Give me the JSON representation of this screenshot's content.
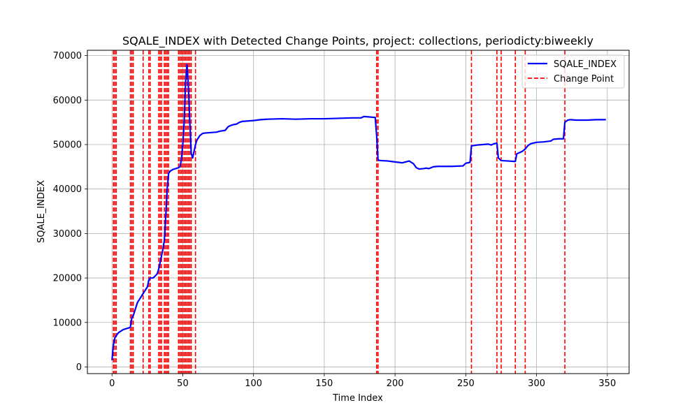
{
  "chart_data": {
    "type": "line",
    "title": "SQALE_INDEX with Detected Change Points, project: collections, periodicty:biweekly",
    "xlabel": "Time Index",
    "ylabel": "SQALE_INDEX",
    "xlim": [
      -17.4,
      365.4
    ],
    "ylim": [
      -1500,
      71200
    ],
    "xticks": [
      0,
      50,
      100,
      150,
      200,
      250,
      300,
      350
    ],
    "yticks": [
      0,
      10000,
      20000,
      30000,
      40000,
      50000,
      60000,
      70000
    ],
    "grid": true,
    "legend_position": "upper right",
    "series": [
      {
        "name": "SQALE_INDEX",
        "color": "#0000ff",
        "style": "solid",
        "points": [
          [
            0,
            1500
          ],
          [
            1,
            5000
          ],
          [
            2,
            6500
          ],
          [
            3,
            7000
          ],
          [
            4,
            7500
          ],
          [
            5,
            7800
          ],
          [
            6,
            8000
          ],
          [
            7,
            8200
          ],
          [
            8,
            8400
          ],
          [
            9,
            8500
          ],
          [
            10,
            8600
          ],
          [
            11,
            8700
          ],
          [
            12,
            8800
          ],
          [
            13,
            9000
          ],
          [
            14,
            11000
          ],
          [
            15,
            11500
          ],
          [
            16,
            12500
          ],
          [
            17,
            13500
          ],
          [
            18,
            14500
          ],
          [
            19,
            15000
          ],
          [
            20,
            15500
          ],
          [
            21,
            16000
          ],
          [
            22,
            16500
          ],
          [
            23,
            17000
          ],
          [
            24,
            17500
          ],
          [
            25,
            18000
          ],
          [
            26,
            19500
          ],
          [
            27,
            20000
          ],
          [
            28,
            20000
          ],
          [
            29,
            20000
          ],
          [
            30,
            20300
          ],
          [
            31,
            20600
          ],
          [
            32,
            21000
          ],
          [
            33,
            22000
          ],
          [
            34,
            23500
          ],
          [
            35,
            25000
          ],
          [
            36,
            26500
          ],
          [
            37,
            28500
          ],
          [
            38,
            34000
          ],
          [
            39,
            40000
          ],
          [
            40,
            43500
          ],
          [
            41,
            44000
          ],
          [
            42,
            44200
          ],
          [
            43,
            44400
          ],
          [
            44,
            44500
          ],
          [
            45,
            44600
          ],
          [
            46,
            44700
          ],
          [
            47,
            44800
          ],
          [
            48,
            45000
          ],
          [
            49,
            46500
          ],
          [
            50,
            50000
          ],
          [
            51,
            55000
          ],
          [
            52,
            64000
          ],
          [
            53,
            68000
          ],
          [
            54,
            63000
          ],
          [
            55,
            55000
          ],
          [
            56,
            48000
          ],
          [
            57,
            47000
          ],
          [
            58,
            48500
          ],
          [
            59,
            50000
          ],
          [
            60,
            51000
          ],
          [
            62,
            52000
          ],
          [
            64,
            52500
          ],
          [
            66,
            52600
          ],
          [
            70,
            52700
          ],
          [
            74,
            52800
          ],
          [
            76,
            53000
          ],
          [
            80,
            53200
          ],
          [
            82,
            54000
          ],
          [
            84,
            54300
          ],
          [
            86,
            54500
          ],
          [
            88,
            54600
          ],
          [
            90,
            55000
          ],
          [
            92,
            55200
          ],
          [
            96,
            55300
          ],
          [
            100,
            55400
          ],
          [
            105,
            55600
          ],
          [
            110,
            55700
          ],
          [
            120,
            55800
          ],
          [
            130,
            55700
          ],
          [
            140,
            55800
          ],
          [
            150,
            55800
          ],
          [
            160,
            55900
          ],
          [
            170,
            56000
          ],
          [
            176,
            56000
          ],
          [
            178,
            56300
          ],
          [
            182,
            56200
          ],
          [
            186,
            56100
          ],
          [
            187,
            52000
          ],
          [
            188,
            46500
          ],
          [
            190,
            46400
          ],
          [
            195,
            46300
          ],
          [
            200,
            46100
          ],
          [
            205,
            45900
          ],
          [
            210,
            46300
          ],
          [
            213,
            45700
          ],
          [
            215,
            44800
          ],
          [
            217,
            44500
          ],
          [
            220,
            44600
          ],
          [
            222,
            44700
          ],
          [
            224,
            44600
          ],
          [
            227,
            45000
          ],
          [
            230,
            45100
          ],
          [
            240,
            45100
          ],
          [
            248,
            45200
          ],
          [
            250,
            45800
          ],
          [
            253,
            46000
          ],
          [
            254,
            49700
          ],
          [
            258,
            49900
          ],
          [
            262,
            50000
          ],
          [
            266,
            50100
          ],
          [
            268,
            49900
          ],
          [
            270,
            50200
          ],
          [
            272,
            50300
          ],
          [
            273,
            47000
          ],
          [
            275,
            46400
          ],
          [
            280,
            46300
          ],
          [
            285,
            46200
          ],
          [
            286,
            47900
          ],
          [
            290,
            48500
          ],
          [
            292,
            49000
          ],
          [
            294,
            49800
          ],
          [
            296,
            50200
          ],
          [
            300,
            50500
          ],
          [
            305,
            50600
          ],
          [
            310,
            50800
          ],
          [
            312,
            51200
          ],
          [
            316,
            51300
          ],
          [
            319,
            51300
          ],
          [
            320,
            55000
          ],
          [
            322,
            55500
          ],
          [
            324,
            55600
          ],
          [
            328,
            55500
          ],
          [
            336,
            55500
          ],
          [
            342,
            55600
          ],
          [
            349,
            55600
          ]
        ]
      },
      {
        "name": "Change Point",
        "color": "#ff0000",
        "style": "dashed",
        "change_points": [
          1,
          2,
          3,
          13,
          14,
          15,
          22,
          26,
          27,
          33,
          34,
          35,
          37,
          38,
          39,
          40,
          47,
          48,
          49,
          50,
          51,
          52,
          53,
          54,
          55,
          56,
          59,
          187,
          188,
          254,
          272,
          275,
          285,
          292,
          320
        ]
      }
    ]
  }
}
